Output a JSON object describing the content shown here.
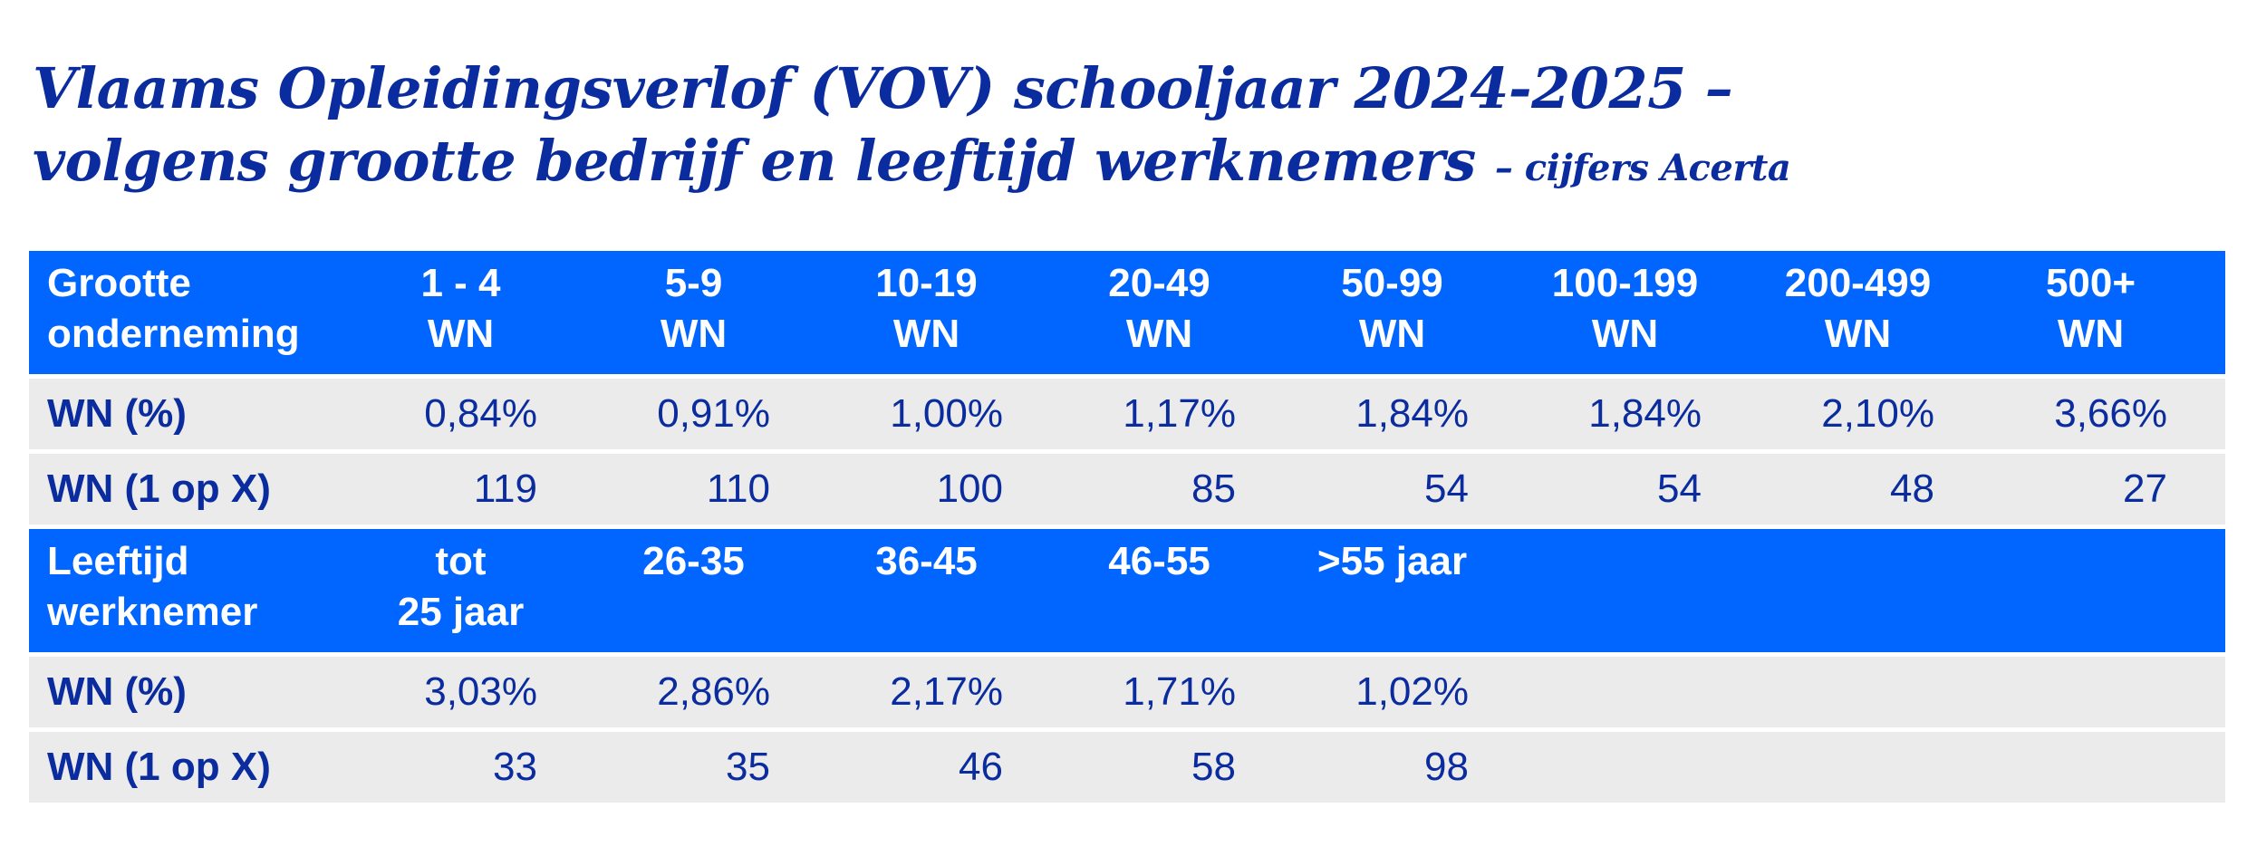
{
  "title": {
    "line1": "Vlaams Opleidingsverlof (VOV) schooljaar 2024-2025 –",
    "line2": "volgens grootte bedrijf en leeftijd werknemers",
    "source": "– cijfers Acerta"
  },
  "colors": {
    "header_bg": "#0066ff",
    "row_bg": "#ebebeb",
    "text": "#0a2c9e"
  },
  "size_table": {
    "header_label": [
      "Grootte",
      "onderneming"
    ],
    "columns": [
      [
        "1 - 4",
        "WN"
      ],
      [
        "5-9",
        "WN"
      ],
      [
        "10-19",
        "WN"
      ],
      [
        "20-49",
        "WN"
      ],
      [
        "50-99",
        "WN"
      ],
      [
        "100-199",
        "WN"
      ],
      [
        "200-499",
        "WN"
      ],
      [
        "500+",
        "WN"
      ]
    ],
    "rows": [
      {
        "label": "WN (%)",
        "values": [
          "0,84%",
          "0,91%",
          "1,00%",
          "1,17%",
          "1,84%",
          "1,84%",
          "2,10%",
          "3,66%"
        ]
      },
      {
        "label": "WN (1 op X)",
        "values": [
          "119",
          "110",
          "100",
          "85",
          "54",
          "54",
          "48",
          "27"
        ]
      }
    ]
  },
  "age_table": {
    "header_label": [
      "Leeftijd",
      "werknemer"
    ],
    "columns": [
      [
        "tot",
        "25 jaar"
      ],
      [
        "26-35",
        ""
      ],
      [
        "36-45",
        ""
      ],
      [
        "46-55",
        ""
      ],
      [
        ">55 jaar",
        ""
      ]
    ],
    "rows": [
      {
        "label": "WN (%)",
        "values": [
          "3,03%",
          "2,86%",
          "2,17%",
          "1,71%",
          "1,02%"
        ]
      },
      {
        "label": "WN (1 op X)",
        "values": [
          "33",
          "35",
          "46",
          "58",
          "98"
        ]
      }
    ]
  }
}
